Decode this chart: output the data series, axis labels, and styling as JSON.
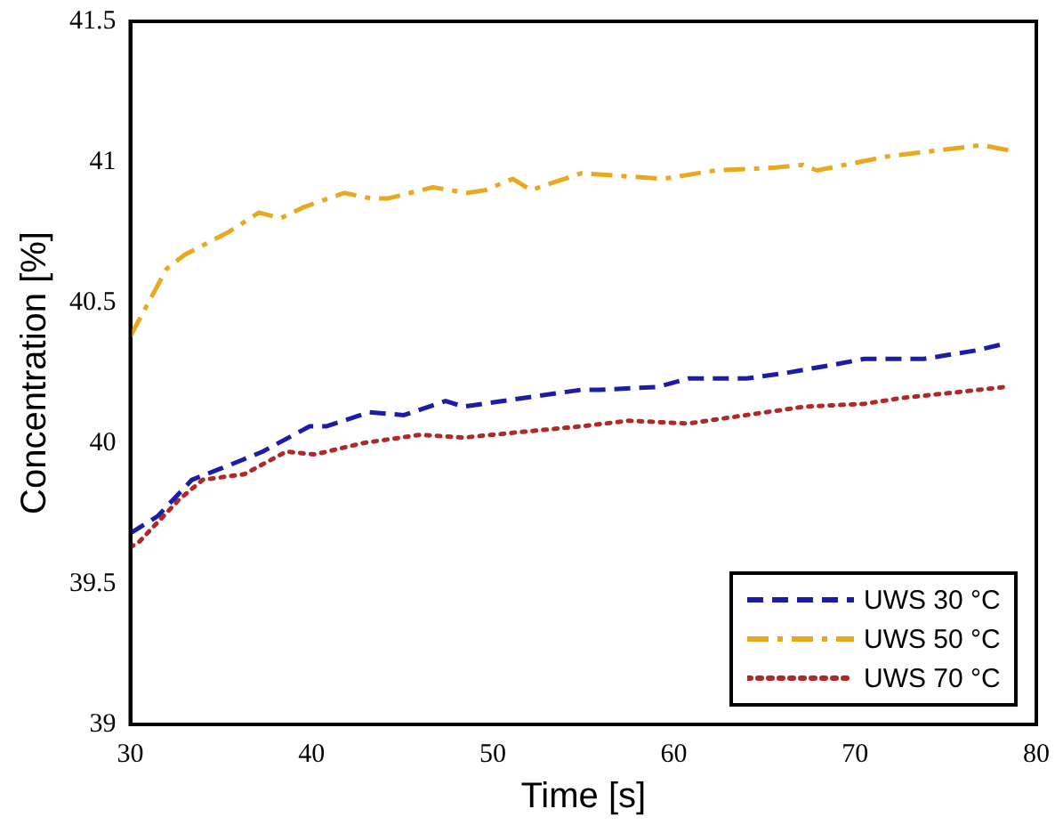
{
  "chart_data": {
    "type": "line",
    "xlabel": "Time [s]",
    "ylabel": "Concentration [%]",
    "xlim": [
      30,
      80
    ],
    "xticks": [
      30,
      40,
      50,
      60,
      70,
      80
    ],
    "ylim": [
      39,
      41.5
    ],
    "yticks": [
      39,
      39.5,
      40,
      40.5,
      41,
      41.5
    ],
    "grid": false,
    "legend": "bottom right",
    "marker": "none",
    "series": [
      {
        "name": "UWS 30 °C",
        "color": "#1c1ca8",
        "line_style": "dashed",
        "x": [
          30,
          30.5,
          31.5,
          33.4,
          35,
          37.3,
          39.9,
          40.8,
          43.2,
          45.1,
          47.4,
          48.4,
          51.6,
          54.9,
          55.9,
          59.1,
          60.8,
          64,
          66.2,
          68.9,
          70.5,
          73.8,
          76.7,
          78
        ],
        "values": [
          39.68,
          39.7,
          39.74,
          39.87,
          39.91,
          39.97,
          40.06,
          40.06,
          40.11,
          40.1,
          40.15,
          40.13,
          40.16,
          40.19,
          40.19,
          40.2,
          40.23,
          40.23,
          40.25,
          40.28,
          40.3,
          40.3,
          40.33,
          40.35
        ]
      },
      {
        "name": "UWS 50 °C",
        "color": "#e8a820",
        "line_style": "dashdot",
        "x": [
          30,
          32,
          33,
          35.4,
          37.1,
          38.3,
          39.6,
          41.8,
          43.3,
          44.2,
          46.7,
          48.6,
          49.6,
          51.1,
          52.1,
          54.9,
          59.4,
          62.3,
          65.6,
          67.1,
          67.9,
          71.8,
          77,
          78.6
        ],
        "values": [
          40.38,
          40.62,
          40.67,
          40.75,
          40.82,
          40.8,
          40.84,
          40.89,
          40.87,
          40.87,
          40.91,
          40.89,
          40.9,
          40.94,
          40.9,
          40.96,
          40.94,
          40.97,
          40.98,
          40.99,
          40.97,
          41.02,
          41.06,
          41.04
        ]
      },
      {
        "name": "UWS 70 °C",
        "color": "#b02828",
        "line_style": "dotted",
        "x": [
          30,
          30.5,
          32.7,
          34,
          36.3,
          38.6,
          40.2,
          42.8,
          46,
          48.4,
          51.6,
          54.9,
          57.5,
          60.8,
          64,
          67.2,
          70.5,
          72.5,
          75.4,
          78.3
        ],
        "values": [
          39.63,
          39.65,
          39.8,
          39.87,
          39.89,
          39.97,
          39.96,
          40,
          40.03,
          40.02,
          40.04,
          40.06,
          40.08,
          40.07,
          40.1,
          40.13,
          40.14,
          40.16,
          40.18,
          40.2
        ]
      }
    ]
  }
}
